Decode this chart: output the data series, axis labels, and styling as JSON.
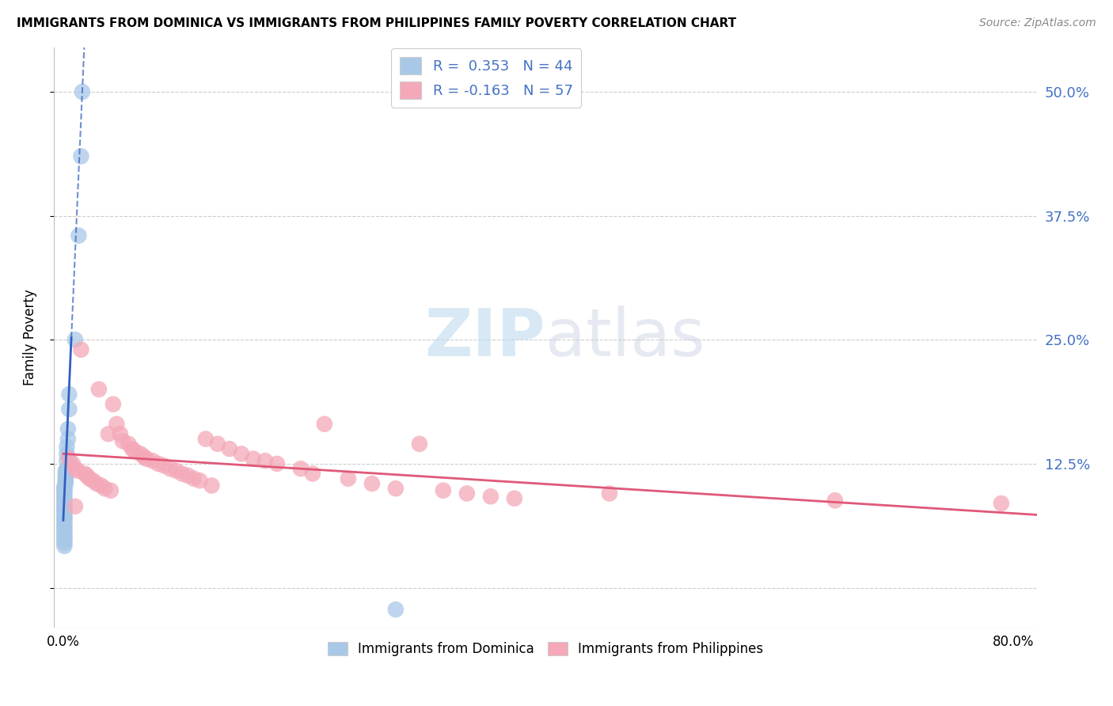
{
  "title": "IMMIGRANTS FROM DOMINICA VS IMMIGRANTS FROM PHILIPPINES FAMILY POVERTY CORRELATION CHART",
  "source": "Source: ZipAtlas.com",
  "ylabel": "Family Poverty",
  "yticks": [
    0.0,
    0.125,
    0.25,
    0.375,
    0.5
  ],
  "ytick_labels": [
    "",
    "12.5%",
    "25.0%",
    "37.5%",
    "50.0%"
  ],
  "xlim": [
    -0.008,
    0.82
  ],
  "ylim": [
    -0.04,
    0.545
  ],
  "legend_blue_label": "R =  0.353   N = 44",
  "legend_pink_label": "R = -0.163   N = 57",
  "legend_sub_blue": "Immigrants from Dominica",
  "legend_sub_pink": "Immigrants from Philippines",
  "blue_color": "#A8C8E8",
  "pink_color": "#F4A8B8",
  "blue_line_color": "#3060C0",
  "pink_line_color": "#E05878",
  "blue_scatter_x": [
    0.016,
    0.015,
    0.013,
    0.01,
    0.005,
    0.005,
    0.004,
    0.004,
    0.003,
    0.003,
    0.003,
    0.003,
    0.002,
    0.002,
    0.002,
    0.002,
    0.002,
    0.002,
    0.001,
    0.001,
    0.001,
    0.001,
    0.001,
    0.001,
    0.001,
    0.001,
    0.001,
    0.001,
    0.001,
    0.001,
    0.001,
    0.001,
    0.001,
    0.001,
    0.001,
    0.001,
    0.001,
    0.001,
    0.001,
    0.001,
    0.001,
    0.001,
    0.001,
    0.28
  ],
  "blue_scatter_y": [
    0.5,
    0.435,
    0.355,
    0.25,
    0.195,
    0.18,
    0.16,
    0.15,
    0.142,
    0.135,
    0.128,
    0.12,
    0.118,
    0.115,
    0.113,
    0.11,
    0.108,
    0.105,
    0.102,
    0.1,
    0.098,
    0.096,
    0.093,
    0.09,
    0.088,
    0.085,
    0.082,
    0.08,
    0.078,
    0.075,
    0.072,
    0.07,
    0.068,
    0.065,
    0.062,
    0.06,
    0.058,
    0.055,
    0.052,
    0.05,
    0.048,
    0.045,
    0.042,
    -0.022
  ],
  "pink_scatter_x": [
    0.005,
    0.008,
    0.01,
    0.012,
    0.015,
    0.018,
    0.02,
    0.022,
    0.025,
    0.028,
    0.03,
    0.032,
    0.035,
    0.038,
    0.04,
    0.042,
    0.045,
    0.048,
    0.05,
    0.055,
    0.058,
    0.06,
    0.065,
    0.068,
    0.07,
    0.075,
    0.08,
    0.085,
    0.09,
    0.095,
    0.1,
    0.105,
    0.11,
    0.115,
    0.12,
    0.125,
    0.13,
    0.14,
    0.15,
    0.16,
    0.17,
    0.18,
    0.2,
    0.21,
    0.22,
    0.24,
    0.26,
    0.28,
    0.3,
    0.32,
    0.34,
    0.36,
    0.38,
    0.46,
    0.65,
    0.79,
    0.01
  ],
  "pink_scatter_y": [
    0.13,
    0.125,
    0.12,
    0.118,
    0.24,
    0.115,
    0.113,
    0.11,
    0.108,
    0.105,
    0.2,
    0.103,
    0.1,
    0.155,
    0.098,
    0.185,
    0.165,
    0.155,
    0.148,
    0.145,
    0.14,
    0.138,
    0.135,
    0.132,
    0.13,
    0.128,
    0.125,
    0.123,
    0.12,
    0.118,
    0.115,
    0.113,
    0.11,
    0.108,
    0.15,
    0.103,
    0.145,
    0.14,
    0.135,
    0.13,
    0.128,
    0.125,
    0.12,
    0.115,
    0.165,
    0.11,
    0.105,
    0.1,
    0.145,
    0.098,
    0.095,
    0.092,
    0.09,
    0.095,
    0.088,
    0.085,
    0.082
  ]
}
